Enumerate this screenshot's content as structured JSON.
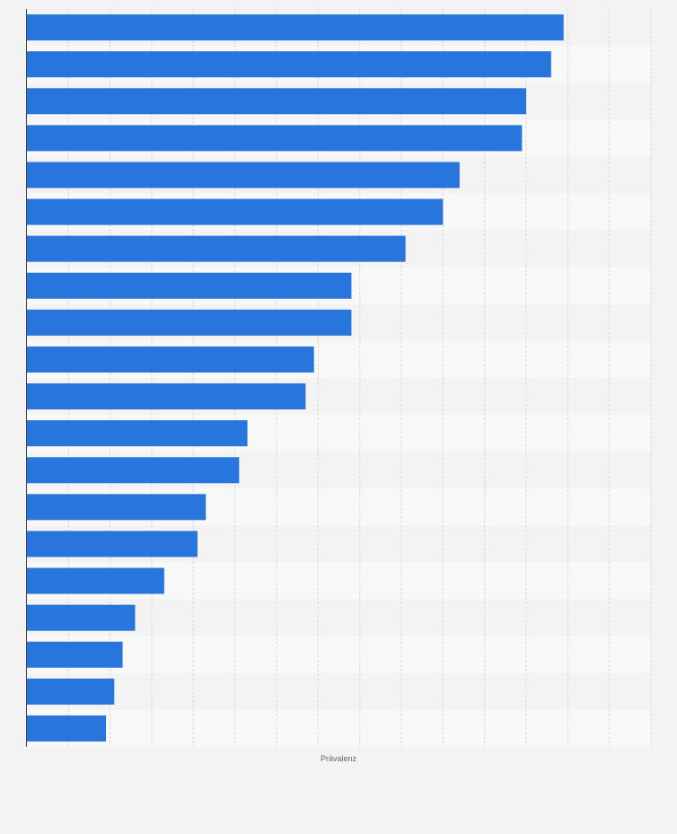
{
  "chart_data": {
    "type": "bar",
    "orientation": "horizontal",
    "xlabel": "Prävalenz",
    "ylabel": "",
    "xlim": [
      0,
      15
    ],
    "grid": true,
    "values": [
      12.9,
      12.6,
      12.0,
      11.9,
      10.4,
      10.0,
      9.1,
      7.8,
      7.8,
      6.9,
      6.7,
      5.3,
      5.1,
      4.3,
      4.1,
      3.3,
      2.6,
      2.3,
      2.1,
      1.9
    ],
    "bar_color": "#2876dd",
    "band_colors": [
      "#f3f3f3",
      "#f8f8f8"
    ]
  }
}
